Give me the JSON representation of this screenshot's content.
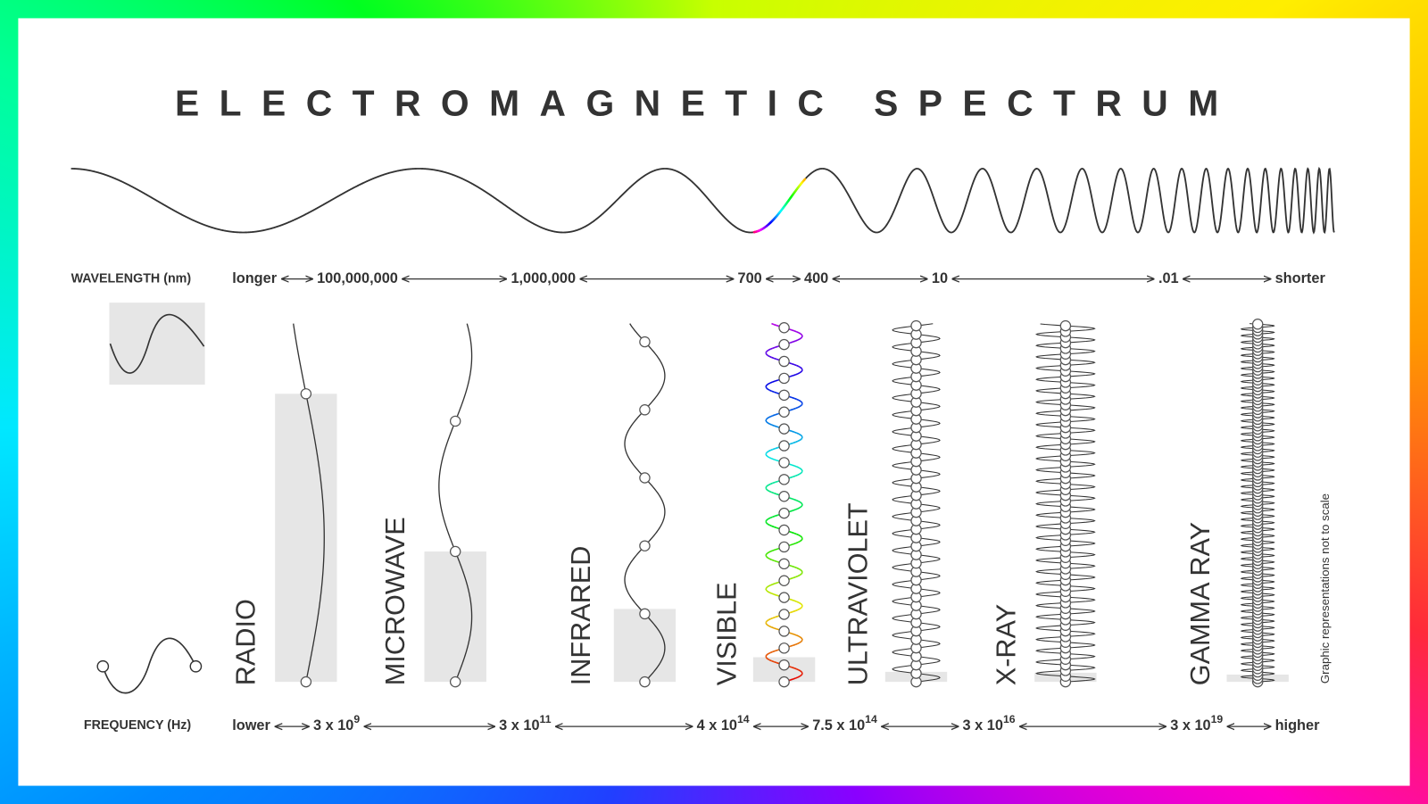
{
  "title": "ELECTROMAGNETIC SPECTRUM",
  "wavelength": {
    "label": "WAVELENGTH (nm)",
    "scale": [
      "longer",
      "100,000,000",
      "1,000,000",
      "700",
      "400",
      "10",
      ".01",
      "shorter"
    ]
  },
  "frequency": {
    "label": "FREQUENCY (Hz)",
    "scale": [
      {
        "text": "lower"
      },
      {
        "base": "3 x 10",
        "exp": "9"
      },
      {
        "base": "3 x 10",
        "exp": "11"
      },
      {
        "base": "4 x 10",
        "exp": "14"
      },
      {
        "base": "7.5 x 10",
        "exp": "14"
      },
      {
        "base": "3 x 10",
        "exp": "16"
      },
      {
        "base": "3 x 10",
        "exp": "19"
      },
      {
        "text": "higher"
      }
    ]
  },
  "bands": [
    "RADIO",
    "MICROWAVE",
    "INFRARED",
    "VISIBLE",
    "ULTRAVIOLET",
    "X-RAY",
    "GAMMA RAY"
  ],
  "note": "Graphic representations not to scale"
}
